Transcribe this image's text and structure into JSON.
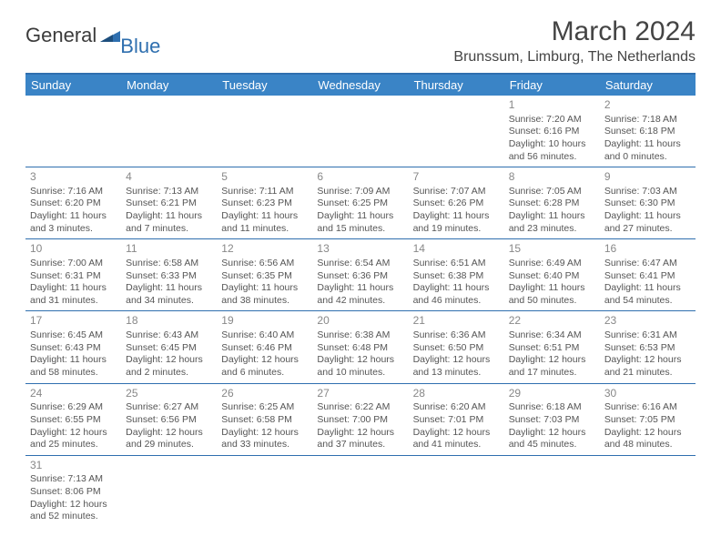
{
  "logo": {
    "word1": "General",
    "word2": "Blue"
  },
  "title": "March 2024",
  "location": "Brunssum, Limburg, The Netherlands",
  "colors": {
    "headerBg": "#3a84c6",
    "headerText": "#ffffff",
    "accent": "#2f6faf",
    "bodyText": "#555555",
    "dayNum": "#888888"
  },
  "weekdays": [
    "Sunday",
    "Monday",
    "Tuesday",
    "Wednesday",
    "Thursday",
    "Friday",
    "Saturday"
  ],
  "weeks": [
    [
      null,
      null,
      null,
      null,
      null,
      {
        "d": "1",
        "sr": "Sunrise: 7:20 AM",
        "ss": "Sunset: 6:16 PM",
        "dl1": "Daylight: 10 hours",
        "dl2": "and 56 minutes."
      },
      {
        "d": "2",
        "sr": "Sunrise: 7:18 AM",
        "ss": "Sunset: 6:18 PM",
        "dl1": "Daylight: 11 hours",
        "dl2": "and 0 minutes."
      }
    ],
    [
      {
        "d": "3",
        "sr": "Sunrise: 7:16 AM",
        "ss": "Sunset: 6:20 PM",
        "dl1": "Daylight: 11 hours",
        "dl2": "and 3 minutes."
      },
      {
        "d": "4",
        "sr": "Sunrise: 7:13 AM",
        "ss": "Sunset: 6:21 PM",
        "dl1": "Daylight: 11 hours",
        "dl2": "and 7 minutes."
      },
      {
        "d": "5",
        "sr": "Sunrise: 7:11 AM",
        "ss": "Sunset: 6:23 PM",
        "dl1": "Daylight: 11 hours",
        "dl2": "and 11 minutes."
      },
      {
        "d": "6",
        "sr": "Sunrise: 7:09 AM",
        "ss": "Sunset: 6:25 PM",
        "dl1": "Daylight: 11 hours",
        "dl2": "and 15 minutes."
      },
      {
        "d": "7",
        "sr": "Sunrise: 7:07 AM",
        "ss": "Sunset: 6:26 PM",
        "dl1": "Daylight: 11 hours",
        "dl2": "and 19 minutes."
      },
      {
        "d": "8",
        "sr": "Sunrise: 7:05 AM",
        "ss": "Sunset: 6:28 PM",
        "dl1": "Daylight: 11 hours",
        "dl2": "and 23 minutes."
      },
      {
        "d": "9",
        "sr": "Sunrise: 7:03 AM",
        "ss": "Sunset: 6:30 PM",
        "dl1": "Daylight: 11 hours",
        "dl2": "and 27 minutes."
      }
    ],
    [
      {
        "d": "10",
        "sr": "Sunrise: 7:00 AM",
        "ss": "Sunset: 6:31 PM",
        "dl1": "Daylight: 11 hours",
        "dl2": "and 31 minutes."
      },
      {
        "d": "11",
        "sr": "Sunrise: 6:58 AM",
        "ss": "Sunset: 6:33 PM",
        "dl1": "Daylight: 11 hours",
        "dl2": "and 34 minutes."
      },
      {
        "d": "12",
        "sr": "Sunrise: 6:56 AM",
        "ss": "Sunset: 6:35 PM",
        "dl1": "Daylight: 11 hours",
        "dl2": "and 38 minutes."
      },
      {
        "d": "13",
        "sr": "Sunrise: 6:54 AM",
        "ss": "Sunset: 6:36 PM",
        "dl1": "Daylight: 11 hours",
        "dl2": "and 42 minutes."
      },
      {
        "d": "14",
        "sr": "Sunrise: 6:51 AM",
        "ss": "Sunset: 6:38 PM",
        "dl1": "Daylight: 11 hours",
        "dl2": "and 46 minutes."
      },
      {
        "d": "15",
        "sr": "Sunrise: 6:49 AM",
        "ss": "Sunset: 6:40 PM",
        "dl1": "Daylight: 11 hours",
        "dl2": "and 50 minutes."
      },
      {
        "d": "16",
        "sr": "Sunrise: 6:47 AM",
        "ss": "Sunset: 6:41 PM",
        "dl1": "Daylight: 11 hours",
        "dl2": "and 54 minutes."
      }
    ],
    [
      {
        "d": "17",
        "sr": "Sunrise: 6:45 AM",
        "ss": "Sunset: 6:43 PM",
        "dl1": "Daylight: 11 hours",
        "dl2": "and 58 minutes."
      },
      {
        "d": "18",
        "sr": "Sunrise: 6:43 AM",
        "ss": "Sunset: 6:45 PM",
        "dl1": "Daylight: 12 hours",
        "dl2": "and 2 minutes."
      },
      {
        "d": "19",
        "sr": "Sunrise: 6:40 AM",
        "ss": "Sunset: 6:46 PM",
        "dl1": "Daylight: 12 hours",
        "dl2": "and 6 minutes."
      },
      {
        "d": "20",
        "sr": "Sunrise: 6:38 AM",
        "ss": "Sunset: 6:48 PM",
        "dl1": "Daylight: 12 hours",
        "dl2": "and 10 minutes."
      },
      {
        "d": "21",
        "sr": "Sunrise: 6:36 AM",
        "ss": "Sunset: 6:50 PM",
        "dl1": "Daylight: 12 hours",
        "dl2": "and 13 minutes."
      },
      {
        "d": "22",
        "sr": "Sunrise: 6:34 AM",
        "ss": "Sunset: 6:51 PM",
        "dl1": "Daylight: 12 hours",
        "dl2": "and 17 minutes."
      },
      {
        "d": "23",
        "sr": "Sunrise: 6:31 AM",
        "ss": "Sunset: 6:53 PM",
        "dl1": "Daylight: 12 hours",
        "dl2": "and 21 minutes."
      }
    ],
    [
      {
        "d": "24",
        "sr": "Sunrise: 6:29 AM",
        "ss": "Sunset: 6:55 PM",
        "dl1": "Daylight: 12 hours",
        "dl2": "and 25 minutes."
      },
      {
        "d": "25",
        "sr": "Sunrise: 6:27 AM",
        "ss": "Sunset: 6:56 PM",
        "dl1": "Daylight: 12 hours",
        "dl2": "and 29 minutes."
      },
      {
        "d": "26",
        "sr": "Sunrise: 6:25 AM",
        "ss": "Sunset: 6:58 PM",
        "dl1": "Daylight: 12 hours",
        "dl2": "and 33 minutes."
      },
      {
        "d": "27",
        "sr": "Sunrise: 6:22 AM",
        "ss": "Sunset: 7:00 PM",
        "dl1": "Daylight: 12 hours",
        "dl2": "and 37 minutes."
      },
      {
        "d": "28",
        "sr": "Sunrise: 6:20 AM",
        "ss": "Sunset: 7:01 PM",
        "dl1": "Daylight: 12 hours",
        "dl2": "and 41 minutes."
      },
      {
        "d": "29",
        "sr": "Sunrise: 6:18 AM",
        "ss": "Sunset: 7:03 PM",
        "dl1": "Daylight: 12 hours",
        "dl2": "and 45 minutes."
      },
      {
        "d": "30",
        "sr": "Sunrise: 6:16 AM",
        "ss": "Sunset: 7:05 PM",
        "dl1": "Daylight: 12 hours",
        "dl2": "and 48 minutes."
      }
    ],
    [
      {
        "d": "31",
        "sr": "Sunrise: 7:13 AM",
        "ss": "Sunset: 8:06 PM",
        "dl1": "Daylight: 12 hours",
        "dl2": "and 52 minutes."
      },
      null,
      null,
      null,
      null,
      null,
      null
    ]
  ]
}
